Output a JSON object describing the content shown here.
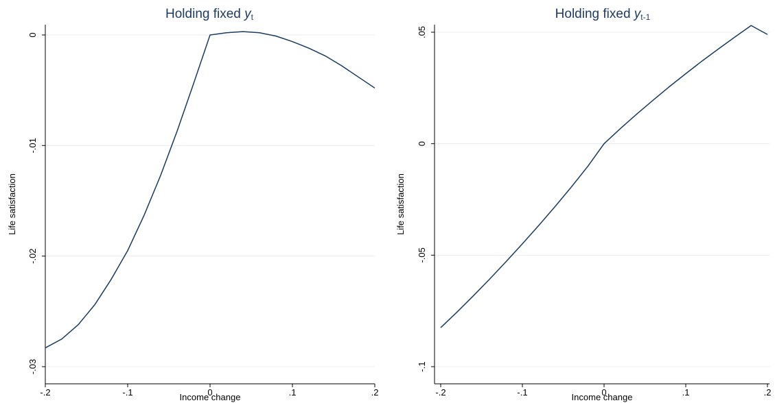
{
  "colors": {
    "line": "#1a3a5c",
    "title": "#1e3a5f",
    "grid": "#e8ecef"
  },
  "chart_data": [
    {
      "type": "line",
      "title": {
        "main": "Holding fixed ",
        "var": "y",
        "sub": "t"
      },
      "xlabel": "Income change",
      "ylabel": "Life satisfaction",
      "xlim": [
        -0.2,
        0.2
      ],
      "ylim": [
        -0.03,
        0
      ],
      "xticks": [
        -0.2,
        -0.1,
        0,
        0.1,
        0.2
      ],
      "xtick_labels": [
        "-.2",
        "-.1",
        "0",
        ".1",
        ".2"
      ],
      "yticks": [
        -0.03,
        -0.02,
        -0.01,
        0
      ],
      "ytick_labels": [
        "-.03",
        "-.02",
        "-.01",
        "0"
      ],
      "grid": true,
      "series": [
        {
          "x": [
            -0.2,
            -0.18,
            -0.16,
            -0.14,
            -0.12,
            -0.1,
            -0.08,
            -0.06,
            -0.04,
            -0.02,
            0,
            0.02,
            0.04,
            0.06,
            0.08,
            0.1,
            0.12,
            0.14,
            0.16,
            0.18,
            0.2
          ],
          "y": [
            -0.0283,
            -0.0275,
            -0.0262,
            -0.0244,
            -0.0221,
            -0.0195,
            -0.0163,
            -0.0127,
            -0.0087,
            -0.0044,
            0,
            0.0002,
            0.0003,
            0.0002,
            -0.0001,
            -0.0006,
            -0.0012,
            -0.0019,
            -0.0028,
            -0.0038,
            -0.0048
          ]
        }
      ]
    },
    {
      "type": "line",
      "title": {
        "main": "Holding fixed ",
        "var": "y",
        "sub": "t-1"
      },
      "xlabel": "Income change",
      "ylabel": "Life satisfaction",
      "xlim": [
        -0.2,
        0.2
      ],
      "ylim": [
        -0.1,
        0.05
      ],
      "xticks": [
        -0.2,
        -0.1,
        0,
        0.1,
        0.2
      ],
      "xtick_labels": [
        "-.2",
        "-.1",
        "0",
        ".1",
        ".2"
      ],
      "yticks": [
        -0.1,
        -0.05,
        0,
        0.05
      ],
      "ytick_labels": [
        "-.1",
        "-.05",
        "0",
        ".05"
      ],
      "grid": true,
      "series": [
        {
          "x": [
            -0.2,
            -0.18,
            -0.16,
            -0.14,
            -0.12,
            -0.1,
            -0.08,
            -0.06,
            -0.04,
            -0.02,
            0,
            0.02,
            0.04,
            0.06,
            0.08,
            0.1,
            0.12,
            0.14,
            0.16,
            0.18,
            0.2
          ],
          "y": [
            -0.0825,
            -0.0755,
            -0.0682,
            -0.0607,
            -0.0529,
            -0.0449,
            -0.0367,
            -0.0282,
            -0.0194,
            -0.0102,
            0,
            0.0068,
            0.0133,
            0.0195,
            0.0256,
            0.0314,
            0.0371,
            0.0425,
            0.0478,
            0.053,
            0.049
          ]
        }
      ]
    }
  ]
}
